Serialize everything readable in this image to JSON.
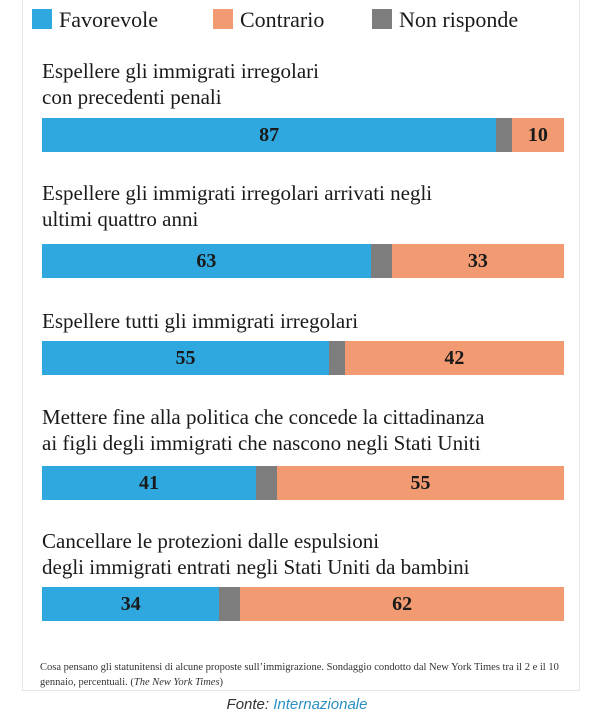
{
  "legend": [
    {
      "label": "Favorevole",
      "color": "#2fa8e0"
    },
    {
      "label": "Contrario",
      "color": "#f29a72"
    },
    {
      "label": "Non risponde",
      "color": "#7d7d7d"
    }
  ],
  "chart_data": {
    "type": "bar",
    "orientation": "horizontal",
    "stacked": true,
    "categories": [
      [
        "Espellere gli immigrati irregolari",
        "con precedenti penali"
      ],
      [
        "Espellere gli immigrati irregolari arrivati negli",
        "ultimi quattro anni"
      ],
      [
        "Espellere tutti gli immigrati irregolari"
      ],
      [
        "Mettere fine alla politica che concede la cittadinanza",
        "ai figli degli immigrati che nascono negli Stati Uniti"
      ],
      [
        "Cancellare le protezioni dalle espulsioni",
        "degli immigrati entrati negli Stati Uniti da bambini"
      ]
    ],
    "series": [
      {
        "name": "Favorevole",
        "values": [
          87,
          63,
          55,
          41,
          34
        ]
      },
      {
        "name": "Non risponde",
        "values": [
          3,
          4,
          3,
          4,
          4
        ]
      },
      {
        "name": "Contrario",
        "values": [
          10,
          33,
          42,
          55,
          62
        ]
      }
    ],
    "xlim": [
      0,
      100
    ],
    "legend_position": "top"
  },
  "footnote": {
    "text": "Cosa pensano gli statunitensi di alcune proposte sull’immigrazione. Sondaggio condotto dal New York Times tra il 2 e il 10 gennaio, percentuali. (",
    "source_italic": "The New York Times",
    "close": ")"
  },
  "credit": {
    "prefix": "Fonte: ",
    "link": "Internazionale"
  }
}
